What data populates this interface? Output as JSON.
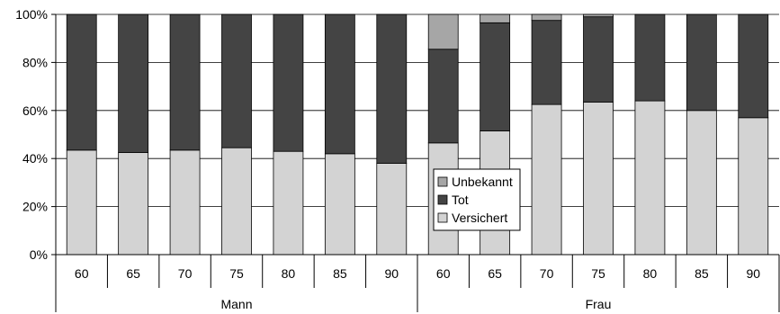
{
  "chart_data": {
    "type": "bar",
    "stacked": "percent",
    "groups": [
      "Mann",
      "Frau"
    ],
    "categories": [
      "60",
      "65",
      "70",
      "75",
      "80",
      "85",
      "90",
      "60",
      "65",
      "70",
      "75",
      "80",
      "85",
      "90"
    ],
    "series": [
      {
        "name": "Versichert",
        "color": "#d3d3d3",
        "values": [
          43.5,
          42.5,
          43.5,
          44.5,
          43,
          42,
          38,
          46.5,
          51.5,
          62.5,
          63.5,
          64,
          60,
          57
        ]
      },
      {
        "name": "Tot",
        "color": "#444444",
        "values": [
          56.5,
          57.5,
          56.5,
          55.5,
          57,
          58,
          62,
          39,
          45,
          35,
          35.5,
          36,
          40,
          43
        ]
      },
      {
        "name": "Unbekannt",
        "color": "#a6a6a6",
        "values": [
          0,
          0,
          0,
          0,
          0,
          0,
          0,
          14.5,
          3.5,
          2.5,
          1,
          0,
          0,
          0
        ]
      }
    ],
    "y_ticks": [
      "0%",
      "20%",
      "40%",
      "60%",
      "80%",
      "100%"
    ],
    "ylim": [
      0,
      100
    ],
    "grid": true,
    "legend": "center",
    "title": "",
    "xlabel": "",
    "ylabel": ""
  }
}
